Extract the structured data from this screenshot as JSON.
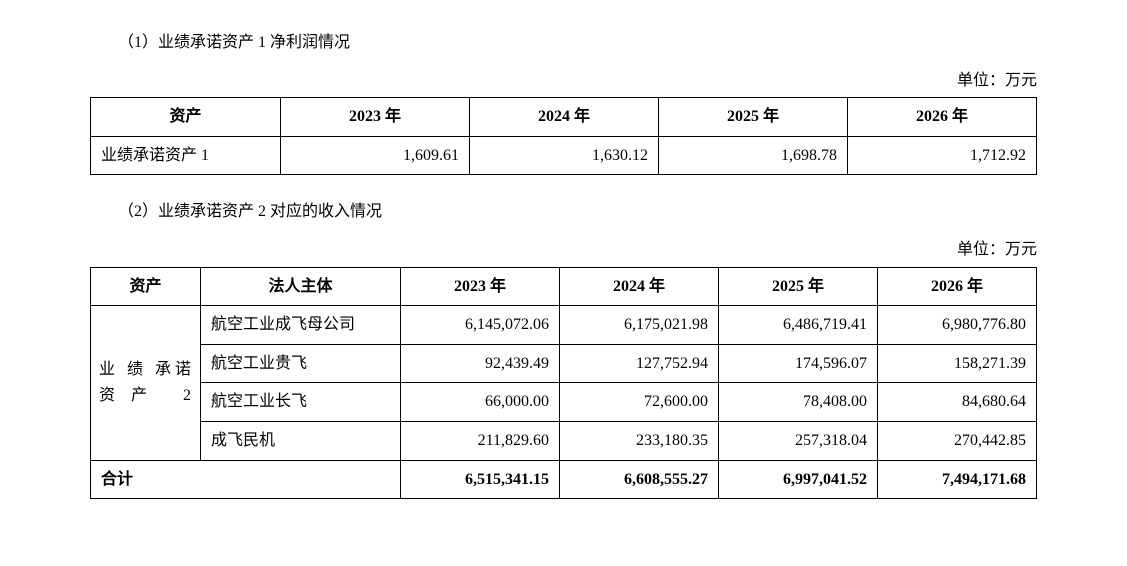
{
  "section1": {
    "title": "（1）业绩承诺资产 1 净利润情况",
    "unit": "单位：万元",
    "table": {
      "type": "table",
      "columns": [
        "资产",
        "2023 年",
        "2024 年",
        "2025 年",
        "2026 年"
      ],
      "rows": [
        {
          "asset": "业绩承诺资产 1",
          "y2023": "1,609.61",
          "y2024": "1,630.12",
          "y2025": "1,698.78",
          "y2026": "1,712.92"
        }
      ],
      "header_align": "center",
      "asset_align": "left",
      "value_align": "right",
      "border_color": "#000000",
      "background_color": "#ffffff",
      "font_size_pt": 12
    }
  },
  "section2": {
    "title": "（2）业绩承诺资产 2 对应的收入情况",
    "unit": "单位：万元",
    "table": {
      "type": "table",
      "columns": [
        "资产",
        "法人主体",
        "2023 年",
        "2024 年",
        "2025 年",
        "2026 年"
      ],
      "asset_group_label": "业 绩 承诺资产 2",
      "rows": [
        {
          "entity": "航空工业成飞母公司",
          "y2023": "6,145,072.06",
          "y2024": "6,175,021.98",
          "y2025": "6,486,719.41",
          "y2026": "6,980,776.80"
        },
        {
          "entity": "航空工业贵飞",
          "y2023": "92,439.49",
          "y2024": "127,752.94",
          "y2025": "174,596.07",
          "y2026": "158,271.39"
        },
        {
          "entity": "航空工业长飞",
          "y2023": "66,000.00",
          "y2024": "72,600.00",
          "y2025": "78,408.00",
          "y2026": "84,680.64"
        },
        {
          "entity": "成飞民机",
          "y2023": "211,829.60",
          "y2024": "233,180.35",
          "y2025": "257,318.04",
          "y2026": "270,442.85"
        }
      ],
      "total": {
        "label": "合计",
        "y2023": "6,515,341.15",
        "y2024": "6,608,555.27",
        "y2025": "6,997,041.52",
        "y2026": "7,494,171.68"
      },
      "header_align": "center",
      "entity_align": "left",
      "value_align": "right",
      "border_color": "#000000",
      "background_color": "#ffffff",
      "font_size_pt": 12
    }
  }
}
